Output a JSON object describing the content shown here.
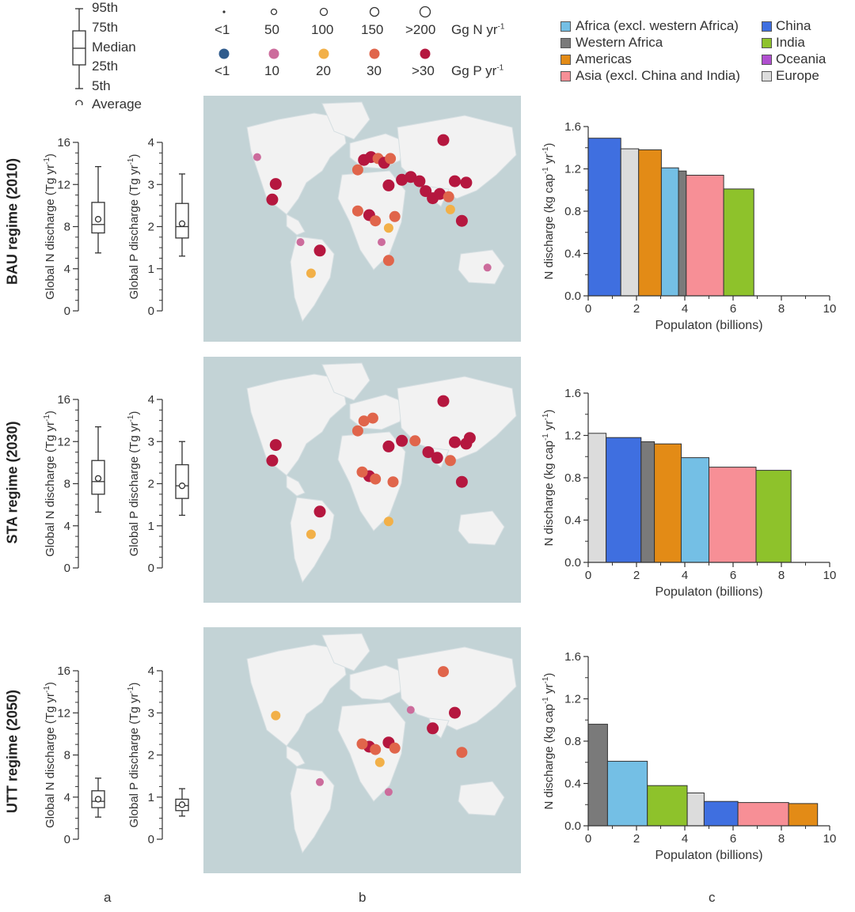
{
  "boxplot_legend": {
    "labels": [
      "95th",
      "75th",
      "Median",
      "25th",
      "5th",
      "Average"
    ]
  },
  "size_legend": {
    "n_labels": [
      "<1",
      "50",
      "100",
      "150",
      ">200"
    ],
    "n_unit": "Gg N yr",
    "p_labels": [
      "<1",
      "10",
      "20",
      "30",
      ">30"
    ],
    "p_unit": "Gg P yr",
    "unit_exp": "-1",
    "p_colors": [
      "#2f5b8c",
      "#cc6c9c",
      "#f2b048",
      "#e0654b",
      "#b5173f"
    ]
  },
  "region_legend": {
    "left": [
      {
        "label": "Africa (excl. western Africa)",
        "color": "#74bfe5"
      },
      {
        "label": "Western Africa",
        "color": "#7a7a7a"
      },
      {
        "label": "Americas",
        "color": "#e38b16"
      },
      {
        "label": "Asia (excl. China and India)",
        "color": "#f78f96"
      }
    ],
    "right": [
      {
        "label": "China",
        "color": "#3f6fe0"
      },
      {
        "label": "India",
        "color": "#8ec22b"
      },
      {
        "label": "Oceania",
        "color": "#b04fcf"
      },
      {
        "label": "Europe",
        "color": "#dcdcdc"
      }
    ]
  },
  "panel_labels": {
    "a": "a",
    "b": "b",
    "c": "c"
  },
  "regimes": [
    {
      "label": "BAU regime (2010)",
      "n": {
        "p5": 5.5,
        "p25": 7.4,
        "median": 8.2,
        "p75": 10.3,
        "p95": 13.7,
        "mean": 8.7
      },
      "p": {
        "p5": 1.3,
        "p25": 1.73,
        "median": 2.0,
        "p75": 2.55,
        "p95": 3.25,
        "mean": 2.07
      }
    },
    {
      "label": "STA regime (2030)",
      "n": {
        "p5": 5.3,
        "p25": 7.0,
        "median": 8.2,
        "p75": 10.2,
        "p95": 13.4,
        "mean": 8.5
      },
      "p": {
        "p5": 1.25,
        "p25": 1.65,
        "median": 1.95,
        "p75": 2.45,
        "p95": 3.0,
        "mean": 1.95
      }
    },
    {
      "label": "UTT regime (2050)",
      "n": {
        "p5": 2.1,
        "p25": 3.0,
        "median": 3.6,
        "p75": 4.6,
        "p95": 5.8,
        "mean": 3.8
      },
      "p": {
        "p5": 0.55,
        "p25": 0.68,
        "median": 0.8,
        "p75": 0.95,
        "p95": 1.2,
        "mean": 0.82
      }
    }
  ],
  "boxplot_axes": {
    "n": {
      "ylabel": "Global N discharge (Tg yr",
      "ylim": [
        0,
        16
      ],
      "ticks": [
        "0",
        "4",
        "8",
        "12",
        "16"
      ]
    },
    "p": {
      "ylabel": "Global P discharge (Tg yr",
      "ylim": [
        0,
        4
      ],
      "ticks": [
        "0",
        "1",
        "2",
        "3",
        "4"
      ]
    },
    "exp": "-1"
  },
  "map_hotspots": [
    [
      {
        "lon": -98,
        "lat": 31,
        "c": 4
      },
      {
        "lon": -102,
        "lat": 20,
        "c": 4
      },
      {
        "lon": -119,
        "lat": 50,
        "c": 1
      },
      {
        "lon": -48,
        "lat": -16,
        "c": 4
      },
      {
        "lon": -58,
        "lat": -32,
        "c": 2
      },
      {
        "lon": -70,
        "lat": -10,
        "c": 1
      },
      {
        "lon": -5,
        "lat": 41,
        "c": 3
      },
      {
        "lon": 2,
        "lat": 48,
        "c": 4
      },
      {
        "lon": 10,
        "lat": 50,
        "c": 4
      },
      {
        "lon": 18,
        "lat": 49,
        "c": 3
      },
      {
        "lon": 25,
        "lat": 46,
        "c": 4
      },
      {
        "lon": 32,
        "lat": 49,
        "c": 3
      },
      {
        "lon": 30,
        "lat": 30,
        "c": 4
      },
      {
        "lon": 45,
        "lat": 34,
        "c": 4
      },
      {
        "lon": 55,
        "lat": 36,
        "c": 4
      },
      {
        "lon": 65,
        "lat": 33,
        "c": 4
      },
      {
        "lon": 72,
        "lat": 26,
        "c": 4
      },
      {
        "lon": 80,
        "lat": 21,
        "c": 4
      },
      {
        "lon": 88,
        "lat": 24,
        "c": 4
      },
      {
        "lon": 98,
        "lat": 22,
        "c": 3
      },
      {
        "lon": 105,
        "lat": 33,
        "c": 4
      },
      {
        "lon": 118,
        "lat": 32,
        "c": 4
      },
      {
        "lon": 113,
        "lat": 5,
        "c": 4
      },
      {
        "lon": 92,
        "lat": 62,
        "c": 4
      },
      {
        "lon": 8,
        "lat": 9,
        "c": 4
      },
      {
        "lon": -5,
        "lat": 12,
        "c": 3
      },
      {
        "lon": 15,
        "lat": 5,
        "c": 3
      },
      {
        "lon": 30,
        "lat": 0,
        "c": 2
      },
      {
        "lon": 37,
        "lat": 8,
        "c": 3
      },
      {
        "lon": 30,
        "lat": -23,
        "c": 3
      },
      {
        "lon": 22,
        "lat": -10,
        "c": 1
      },
      {
        "lon": 100,
        "lat": 13,
        "c": 2
      },
      {
        "lon": 142,
        "lat": -28,
        "c": 1
      }
    ],
    [
      {
        "lon": -98,
        "lat": 31,
        "c": 4
      },
      {
        "lon": -102,
        "lat": 20,
        "c": 4
      },
      {
        "lon": -48,
        "lat": -16,
        "c": 4
      },
      {
        "lon": -58,
        "lat": -32,
        "c": 2
      },
      {
        "lon": -5,
        "lat": 41,
        "c": 3
      },
      {
        "lon": 2,
        "lat": 48,
        "c": 3
      },
      {
        "lon": 12,
        "lat": 50,
        "c": 3
      },
      {
        "lon": 30,
        "lat": 30,
        "c": 4
      },
      {
        "lon": 45,
        "lat": 34,
        "c": 4
      },
      {
        "lon": 60,
        "lat": 34,
        "c": 3
      },
      {
        "lon": 75,
        "lat": 26,
        "c": 4
      },
      {
        "lon": 85,
        "lat": 22,
        "c": 4
      },
      {
        "lon": 105,
        "lat": 33,
        "c": 4
      },
      {
        "lon": 118,
        "lat": 32,
        "c": 4
      },
      {
        "lon": 113,
        "lat": 5,
        "c": 4
      },
      {
        "lon": 92,
        "lat": 62,
        "c": 4
      },
      {
        "lon": 8,
        "lat": 9,
        "c": 4
      },
      {
        "lon": 0,
        "lat": 12,
        "c": 3
      },
      {
        "lon": 15,
        "lat": 7,
        "c": 3
      },
      {
        "lon": 35,
        "lat": 5,
        "c": 3
      },
      {
        "lon": 30,
        "lat": -23,
        "c": 2
      },
      {
        "lon": 122,
        "lat": 36,
        "c": 4
      },
      {
        "lon": 100,
        "lat": 20,
        "c": 3
      }
    ],
    [
      {
        "lon": -98,
        "lat": 31,
        "c": 2
      },
      {
        "lon": -48,
        "lat": -16,
        "c": 1
      },
      {
        "lon": 8,
        "lat": 9,
        "c": 4
      },
      {
        "lon": 15,
        "lat": 7,
        "c": 3
      },
      {
        "lon": 30,
        "lat": 12,
        "c": 4
      },
      {
        "lon": 37,
        "lat": 8,
        "c": 3
      },
      {
        "lon": 0,
        "lat": 11,
        "c": 3
      },
      {
        "lon": 20,
        "lat": -2,
        "c": 2
      },
      {
        "lon": 80,
        "lat": 22,
        "c": 4
      },
      {
        "lon": 105,
        "lat": 33,
        "c": 4
      },
      {
        "lon": 92,
        "lat": 62,
        "c": 3
      },
      {
        "lon": 113,
        "lat": 5,
        "c": 3
      },
      {
        "lon": 55,
        "lat": 35,
        "c": 1
      },
      {
        "lon": 30,
        "lat": -23,
        "c": 1
      }
    ]
  ],
  "chart_data": [
    {
      "type": "bar",
      "title": "BAU regime (2010) N discharge per capita",
      "xlabel": "Populaton (billions)",
      "ylabel": "N discharge (kg cap",
      "ylabel_exp": "-1",
      "ylabel_tail": " yr",
      "ylabel_tail_exp": "-1",
      "xlim": [
        0,
        10
      ],
      "ylim": [
        0,
        1.6
      ],
      "xticks": [
        "0",
        "2",
        "4",
        "6",
        "8",
        "10"
      ],
      "yticks": [
        "0.0",
        "0.4",
        "0.8",
        "1.2",
        "1.6"
      ],
      "bars": [
        {
          "region": "China",
          "population": 1.35,
          "value": 1.49
        },
        {
          "region": "Europe",
          "population": 0.74,
          "value": 1.39
        },
        {
          "region": "Americas",
          "population": 0.94,
          "value": 1.38
        },
        {
          "region": "Africa (excl. western Africa)",
          "population": 0.71,
          "value": 1.21
        },
        {
          "region": "Western Africa",
          "population": 0.32,
          "value": 1.18
        },
        {
          "region": "Asia (excl. China and India)",
          "population": 1.55,
          "value": 1.14
        },
        {
          "region": "India",
          "population": 1.25,
          "value": 1.01
        }
      ]
    },
    {
      "type": "bar",
      "title": "STA regime (2030) N discharge per capita",
      "xlabel": "Populaton (billions)",
      "ylabel": "N discharge (kg cap",
      "ylabel_exp": "-1",
      "ylabel_tail": " yr",
      "ylabel_tail_exp": "-1",
      "xlim": [
        0,
        10
      ],
      "ylim": [
        0,
        1.6
      ],
      "xticks": [
        "0",
        "2",
        "4",
        "6",
        "8",
        "10"
      ],
      "yticks": [
        "0.0",
        "0.4",
        "0.8",
        "1.2",
        "1.6"
      ],
      "bars": [
        {
          "region": "Europe",
          "population": 0.74,
          "value": 1.22
        },
        {
          "region": "China",
          "population": 1.45,
          "value": 1.18
        },
        {
          "region": "Western Africa",
          "population": 0.55,
          "value": 1.14
        },
        {
          "region": "Americas",
          "population": 1.11,
          "value": 1.12
        },
        {
          "region": "Africa (excl. western Africa)",
          "population": 1.15,
          "value": 0.99
        },
        {
          "region": "Asia (excl. China and India)",
          "population": 1.95,
          "value": 0.9
        },
        {
          "region": "India",
          "population": 1.45,
          "value": 0.87
        }
      ]
    },
    {
      "type": "bar",
      "title": "UTT regime (2050) N discharge per capita",
      "xlabel": "Populaton (billions)",
      "ylabel": "N discharge (kg cap",
      "ylabel_exp": "-1",
      "ylabel_tail": " yr",
      "ylabel_tail_exp": "-1",
      "xlim": [
        0,
        10
      ],
      "ylim": [
        0,
        1.6
      ],
      "xticks": [
        "0",
        "2",
        "4",
        "6",
        "8",
        "10"
      ],
      "yticks": [
        "0.0",
        "0.4",
        "0.8",
        "1.2",
        "1.6"
      ],
      "bars": [
        {
          "region": "Western Africa",
          "population": 0.8,
          "value": 0.96
        },
        {
          "region": "Africa (excl. western Africa)",
          "population": 1.65,
          "value": 0.61
        },
        {
          "region": "India",
          "population": 1.65,
          "value": 0.38
        },
        {
          "region": "Europe",
          "population": 0.7,
          "value": 0.31
        },
        {
          "region": "China",
          "population": 1.4,
          "value": 0.23
        },
        {
          "region": "Asia (excl. China and India)",
          "population": 2.1,
          "value": 0.22
        },
        {
          "region": "Americas",
          "population": 1.2,
          "value": 0.21
        }
      ]
    }
  ]
}
